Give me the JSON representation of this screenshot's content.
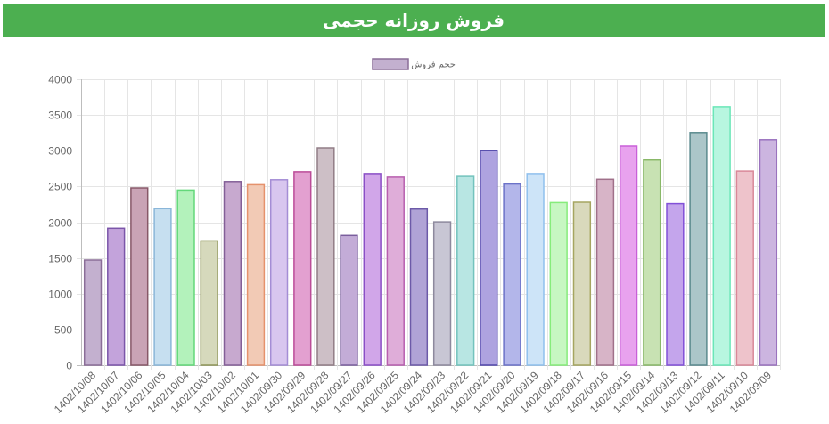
{
  "header": {
    "title": "فروش روزانه حجمی"
  },
  "chart_data": {
    "type": "bar",
    "title": "",
    "xlabel": "",
    "ylabel": "",
    "ylim": [
      0,
      4000
    ],
    "yticks": [
      0,
      500,
      1000,
      1500,
      2000,
      2500,
      3000,
      3500,
      4000
    ],
    "grid": true,
    "legend_position": "top-center",
    "categories": [
      "1402/10/08",
      "1402/10/07",
      "1402/10/06",
      "1402/10/05",
      "1402/10/04",
      "1402/10/03",
      "1402/10/02",
      "1402/10/01",
      "1402/09/30",
      "1402/09/29",
      "1402/09/28",
      "1402/09/27",
      "1402/09/26",
      "1402/09/25",
      "1402/09/24",
      "1402/09/23",
      "1402/09/22",
      "1402/09/21",
      "1402/09/20",
      "1402/09/19",
      "1402/09/18",
      "1402/09/17",
      "1402/09/16",
      "1402/09/15",
      "1402/09/14",
      "1402/09/13",
      "1402/09/12",
      "1402/09/11",
      "1402/09/10",
      "1402/09/09"
    ],
    "series": [
      {
        "name": "حجم فروش",
        "values": [
          1470,
          1915,
          2480,
          2190,
          2450,
          1740,
          2570,
          2525,
          2595,
          2705,
          3040,
          1815,
          2680,
          2630,
          2185,
          2005,
          2640,
          3005,
          2535,
          2680,
          2275,
          2280,
          2600,
          3065,
          2870,
          2260,
          3255,
          3615,
          2715,
          3155
        ],
        "fills": [
          "#c3b0cf",
          "#c3a3db",
          "#c9a3b5",
          "#c6dff0",
          "#b3f2bb",
          "#d6d9bc",
          "#c7a9cf",
          "#f2cab5",
          "#d8c6ef",
          "#e3a0d0",
          "#cdbfc6",
          "#c3acd7",
          "#d1a6e9",
          "#dfadd9",
          "#b0a3d6",
          "#c8c6d4",
          "#b8e6e3",
          "#aea3e0",
          "#b3b6ea",
          "#cde4f8",
          "#c7f7c2",
          "#d9d9bc",
          "#d7b4c7",
          "#e8a2ee",
          "#c8e2b3",
          "#c4a5ec",
          "#abc6c9",
          "#b8f6e0",
          "#eec3cb",
          "#ccb5e0"
        ],
        "strokes": [
          "#8a6d97",
          "#7b55a9",
          "#875868",
          "#8ab6d9",
          "#63d87a",
          "#8e9558",
          "#835f97",
          "#e5926c",
          "#a48dd5",
          "#bb4c98",
          "#917d86",
          "#7a5e9d",
          "#8a4fc6",
          "#b75fae",
          "#6c5aa8",
          "#8d899d",
          "#73c3bd",
          "#5147ab",
          "#6b72c8",
          "#8fc0ed",
          "#86ec7b",
          "#a5a560",
          "#a0708a",
          "#c95fd8",
          "#89b868",
          "#8250d8",
          "#5a8a8e",
          "#6be6b8",
          "#d98898",
          "#9a72be"
        ]
      }
    ]
  }
}
